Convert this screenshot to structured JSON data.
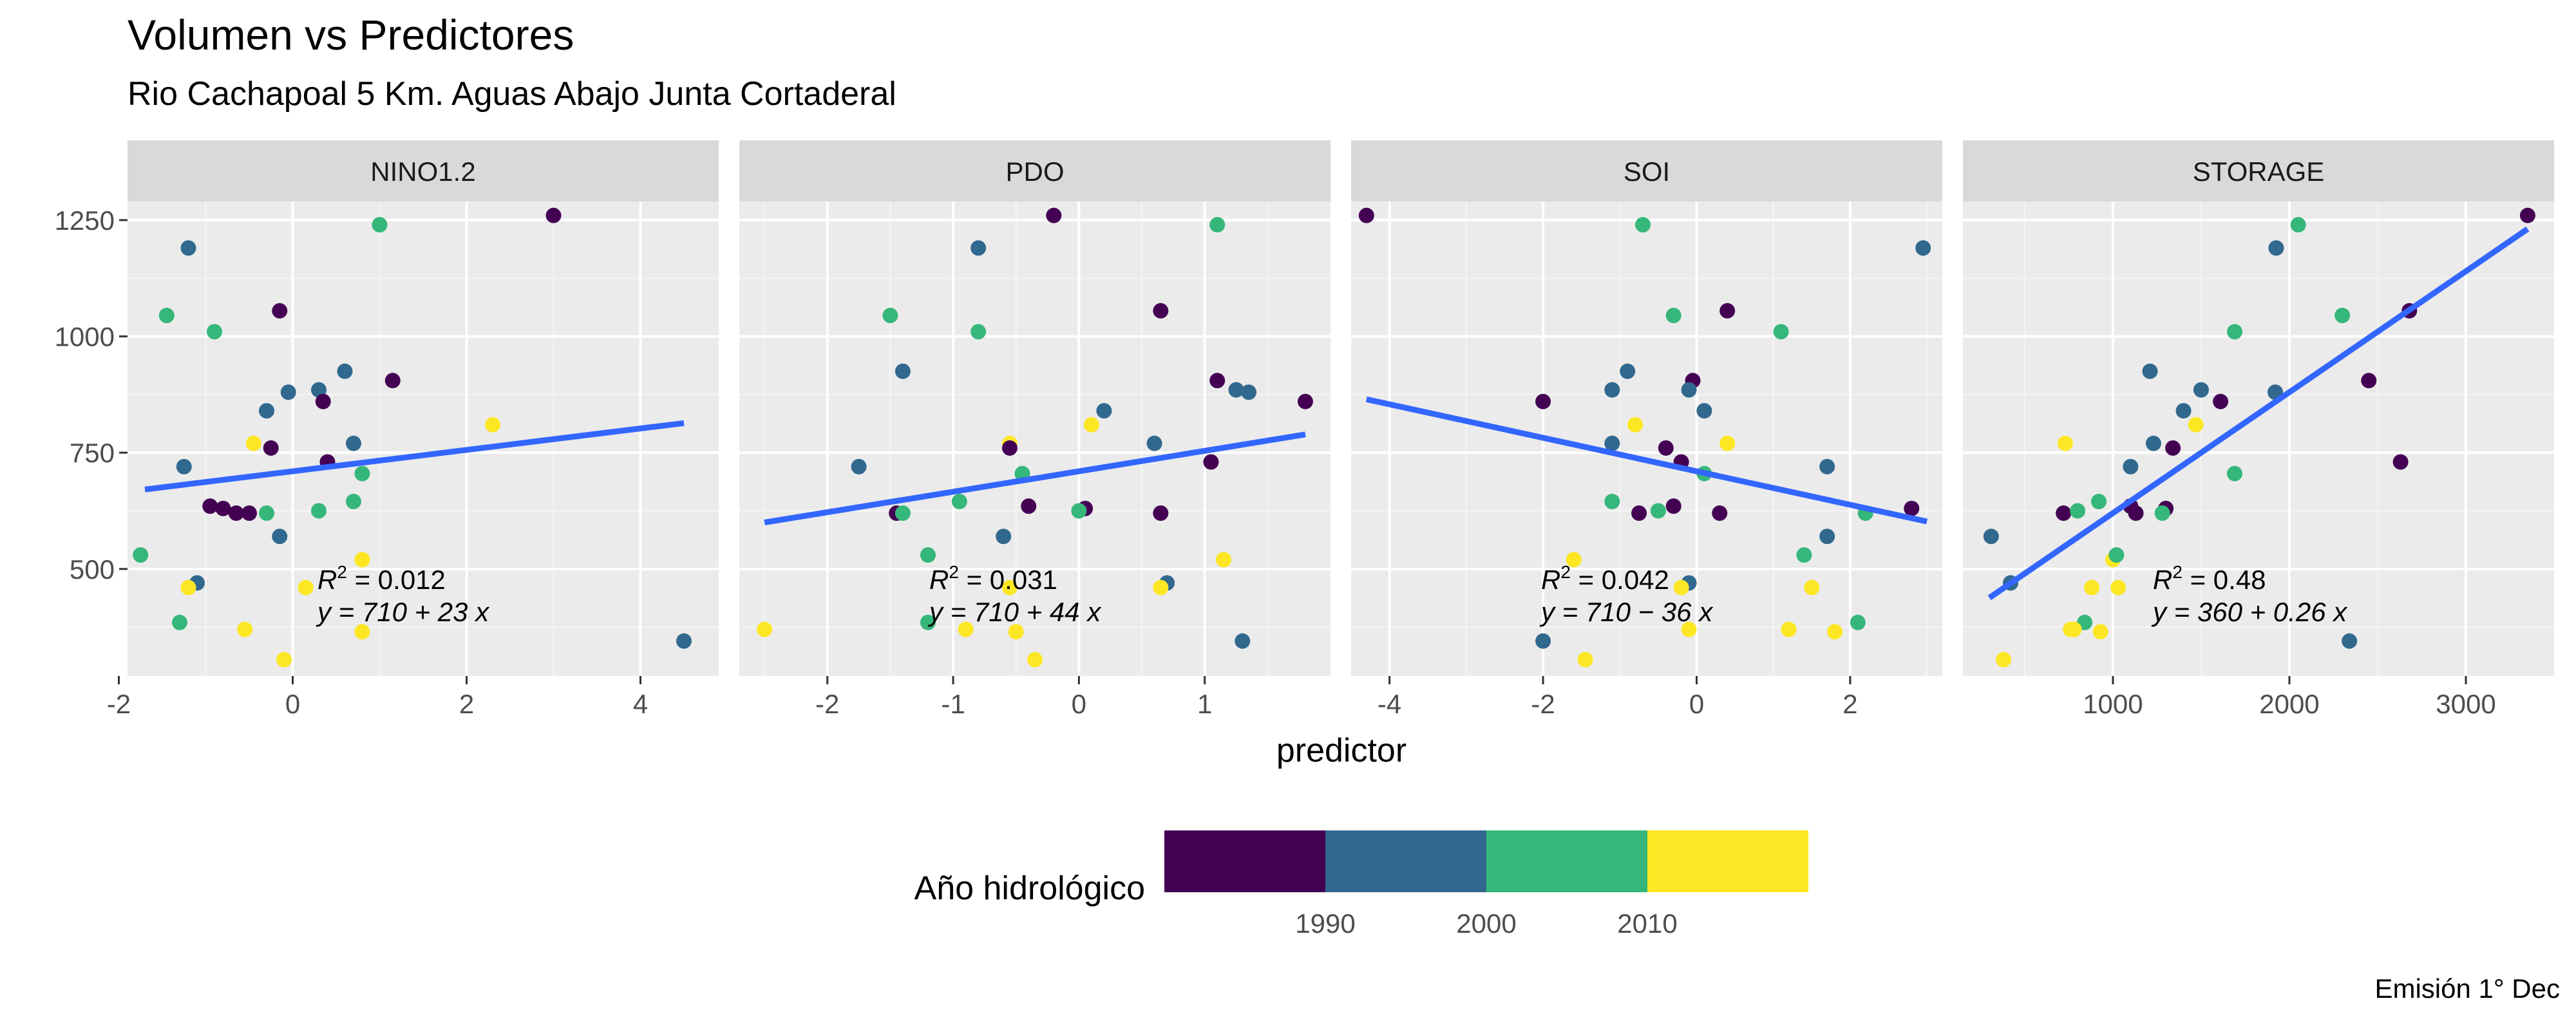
{
  "chart_data": {
    "type": "scatter",
    "title": "Volumen vs Predictores",
    "subtitle": "Rio Cachapoal 5 Km. Aguas Abajo Junta Cortaderal",
    "xlabel": "predictor",
    "ylabel": "",
    "ylim": [
      270,
      1290
    ],
    "yticks": [
      500,
      750,
      1000,
      1250
    ],
    "grid": true,
    "caption": "Emisión 1° Dec",
    "legend": {
      "title": "Año hidrológico",
      "placement": "bottom",
      "breaks": [
        "1990",
        "2000",
        "2010"
      ],
      "bins": [
        {
          "range": "<1990",
          "color": "#440154"
        },
        {
          "range": "1990-2000",
          "color": "#31688E"
        },
        {
          "range": "2000-2010",
          "color": "#35B779"
        },
        {
          "range": ">=2010",
          "color": "#FDE725"
        }
      ]
    },
    "regression_line_color": "#3366FF",
    "panels": [
      {
        "name": "NINO1.2",
        "xlim": [
          -1.9,
          4.9
        ],
        "xticks": [
          -2,
          0,
          2,
          4
        ],
        "xtick_labels": [
          "-2",
          "0",
          "2",
          "4"
        ],
        "fit": {
          "x_range": [
            -1.7,
            4.5
          ],
          "intercept": 710,
          "slope": 23
        },
        "annotation": {
          "r2": "0.012",
          "eq": "y = 710 + 23 x"
        },
        "points": [
          {
            "x": -1.2,
            "y": 1190,
            "era": 1
          },
          {
            "x": 3.0,
            "y": 1260,
            "era": 0
          },
          {
            "x": 1.0,
            "y": 1240,
            "era": 2
          },
          {
            "x": -1.45,
            "y": 1045,
            "era": 2
          },
          {
            "x": -0.9,
            "y": 1010,
            "era": 2
          },
          {
            "x": -0.15,
            "y": 1055,
            "era": 0
          },
          {
            "x": 0.6,
            "y": 925,
            "era": 1
          },
          {
            "x": 1.15,
            "y": 905,
            "era": 0
          },
          {
            "x": -0.3,
            "y": 840,
            "era": 1
          },
          {
            "x": -0.05,
            "y": 880,
            "era": 1
          },
          {
            "x": 0.3,
            "y": 885,
            "era": 1
          },
          {
            "x": 0.35,
            "y": 860,
            "era": 0
          },
          {
            "x": 2.3,
            "y": 810,
            "era": 3
          },
          {
            "x": 0.7,
            "y": 770,
            "era": 1
          },
          {
            "x": -0.45,
            "y": 770,
            "era": 3
          },
          {
            "x": -0.25,
            "y": 760,
            "era": 0
          },
          {
            "x": 0.4,
            "y": 730,
            "era": 0
          },
          {
            "x": -1.25,
            "y": 720,
            "era": 1
          },
          {
            "x": 0.8,
            "y": 705,
            "era": 2
          },
          {
            "x": 0.7,
            "y": 645,
            "era": 2
          },
          {
            "x": -0.95,
            "y": 635,
            "era": 0
          },
          {
            "x": -0.8,
            "y": 630,
            "era": 0
          },
          {
            "x": -0.65,
            "y": 620,
            "era": 0
          },
          {
            "x": -0.5,
            "y": 620,
            "era": 0
          },
          {
            "x": -0.3,
            "y": 620,
            "era": 2
          },
          {
            "x": 0.3,
            "y": 625,
            "era": 2
          },
          {
            "x": -0.15,
            "y": 570,
            "era": 1
          },
          {
            "x": 0.8,
            "y": 520,
            "era": 3
          },
          {
            "x": -1.75,
            "y": 530,
            "era": 2
          },
          {
            "x": -1.1,
            "y": 470,
            "era": 1
          },
          {
            "x": -1.2,
            "y": 460,
            "era": 3
          },
          {
            "x": 0.15,
            "y": 460,
            "era": 3
          },
          {
            "x": -1.3,
            "y": 385,
            "era": 2
          },
          {
            "x": -0.55,
            "y": 370,
            "era": 3
          },
          {
            "x": 0.8,
            "y": 365,
            "era": 3
          },
          {
            "x": -0.1,
            "y": 305,
            "era": 3
          },
          {
            "x": 4.5,
            "y": 345,
            "era": 1
          }
        ]
      },
      {
        "name": "PDO",
        "xlim": [
          -2.7,
          2.0
        ],
        "xticks": [
          -2,
          -1,
          0,
          1
        ],
        "xtick_labels": [
          "-2",
          "-1",
          "0",
          "1"
        ],
        "fit": {
          "x_range": [
            -2.5,
            1.8
          ],
          "intercept": 710,
          "slope": 44
        },
        "annotation": {
          "r2": "0.031",
          "eq": "y = 710 + 44 x"
        },
        "points": [
          {
            "x": -0.8,
            "y": 1190,
            "era": 1
          },
          {
            "x": -0.2,
            "y": 1260,
            "era": 0
          },
          {
            "x": 1.1,
            "y": 1240,
            "era": 2
          },
          {
            "x": -1.5,
            "y": 1045,
            "era": 2
          },
          {
            "x": -0.8,
            "y": 1010,
            "era": 2
          },
          {
            "x": 0.65,
            "y": 1055,
            "era": 0
          },
          {
            "x": -1.4,
            "y": 925,
            "era": 1
          },
          {
            "x": 1.1,
            "y": 905,
            "era": 0
          },
          {
            "x": 1.25,
            "y": 885,
            "era": 1
          },
          {
            "x": 1.35,
            "y": 880,
            "era": 1
          },
          {
            "x": 1.8,
            "y": 860,
            "era": 0
          },
          {
            "x": 0.2,
            "y": 840,
            "era": 1
          },
          {
            "x": 0.1,
            "y": 810,
            "era": 3
          },
          {
            "x": 0.6,
            "y": 770,
            "era": 1
          },
          {
            "x": -0.55,
            "y": 770,
            "era": 3
          },
          {
            "x": -0.55,
            "y": 760,
            "era": 0
          },
          {
            "x": 1.05,
            "y": 730,
            "era": 0
          },
          {
            "x": -1.75,
            "y": 720,
            "era": 1
          },
          {
            "x": -0.45,
            "y": 705,
            "era": 2
          },
          {
            "x": -0.95,
            "y": 645,
            "era": 2
          },
          {
            "x": -0.4,
            "y": 635,
            "era": 0
          },
          {
            "x": 0.05,
            "y": 630,
            "era": 0
          },
          {
            "x": 0.65,
            "y": 620,
            "era": 0
          },
          {
            "x": -1.45,
            "y": 620,
            "era": 0
          },
          {
            "x": -1.4,
            "y": 620,
            "era": 2
          },
          {
            "x": 0.0,
            "y": 625,
            "era": 2
          },
          {
            "x": -0.6,
            "y": 570,
            "era": 1
          },
          {
            "x": 1.15,
            "y": 520,
            "era": 3
          },
          {
            "x": -1.2,
            "y": 530,
            "era": 2
          },
          {
            "x": 0.7,
            "y": 470,
            "era": 1
          },
          {
            "x": 0.65,
            "y": 460,
            "era": 3
          },
          {
            "x": -0.55,
            "y": 460,
            "era": 3
          },
          {
            "x": -1.2,
            "y": 385,
            "era": 2
          },
          {
            "x": -0.9,
            "y": 370,
            "era": 3
          },
          {
            "x": -0.5,
            "y": 365,
            "era": 3
          },
          {
            "x": -0.35,
            "y": 305,
            "era": 3
          },
          {
            "x": 1.3,
            "y": 345,
            "era": 1
          },
          {
            "x": -2.5,
            "y": 370,
            "era": 3
          }
        ]
      },
      {
        "name": "SOI",
        "xlim": [
          -4.5,
          3.2
        ],
        "xticks": [
          -4,
          -2,
          0,
          2
        ],
        "xtick_labels": [
          "-4",
          "-2",
          "0",
          "2"
        ],
        "fit": {
          "x_range": [
            -4.3,
            3.0
          ],
          "intercept": 710,
          "slope": -36
        },
        "annotation": {
          "r2": "0.042",
          "eq": "y = 710 − 36 x"
        },
        "points": [
          {
            "x": 2.95,
            "y": 1190,
            "era": 1
          },
          {
            "x": -4.3,
            "y": 1260,
            "era": 0
          },
          {
            "x": -0.7,
            "y": 1240,
            "era": 2
          },
          {
            "x": -0.3,
            "y": 1045,
            "era": 2
          },
          {
            "x": 1.1,
            "y": 1010,
            "era": 2
          },
          {
            "x": 0.4,
            "y": 1055,
            "era": 0
          },
          {
            "x": -0.9,
            "y": 925,
            "era": 1
          },
          {
            "x": -0.05,
            "y": 905,
            "era": 0
          },
          {
            "x": -1.1,
            "y": 885,
            "era": 1
          },
          {
            "x": -0.1,
            "y": 885,
            "era": 1
          },
          {
            "x": -2.0,
            "y": 860,
            "era": 0
          },
          {
            "x": 0.1,
            "y": 840,
            "era": 1
          },
          {
            "x": -0.8,
            "y": 810,
            "era": 3
          },
          {
            "x": -1.1,
            "y": 770,
            "era": 1
          },
          {
            "x": 0.4,
            "y": 770,
            "era": 3
          },
          {
            "x": -0.4,
            "y": 760,
            "era": 0
          },
          {
            "x": -0.2,
            "y": 730,
            "era": 0
          },
          {
            "x": 1.7,
            "y": 720,
            "era": 1
          },
          {
            "x": 0.1,
            "y": 705,
            "era": 2
          },
          {
            "x": -1.1,
            "y": 645,
            "era": 2
          },
          {
            "x": -0.3,
            "y": 635,
            "era": 0
          },
          {
            "x": 2.8,
            "y": 630,
            "era": 0
          },
          {
            "x": -0.75,
            "y": 620,
            "era": 0
          },
          {
            "x": 0.3,
            "y": 620,
            "era": 0
          },
          {
            "x": -0.5,
            "y": 625,
            "era": 2
          },
          {
            "x": 2.2,
            "y": 620,
            "era": 2
          },
          {
            "x": 1.7,
            "y": 570,
            "era": 1
          },
          {
            "x": -1.6,
            "y": 520,
            "era": 3
          },
          {
            "x": 1.4,
            "y": 530,
            "era": 2
          },
          {
            "x": -0.1,
            "y": 470,
            "era": 1
          },
          {
            "x": 1.5,
            "y": 460,
            "era": 3
          },
          {
            "x": -0.2,
            "y": 460,
            "era": 3
          },
          {
            "x": 2.1,
            "y": 385,
            "era": 2
          },
          {
            "x": 1.2,
            "y": 370,
            "era": 3
          },
          {
            "x": 1.8,
            "y": 365,
            "era": 3
          },
          {
            "x": -0.1,
            "y": 370,
            "era": 3
          },
          {
            "x": -1.45,
            "y": 305,
            "era": 3
          },
          {
            "x": -2.0,
            "y": 345,
            "era": 1
          }
        ]
      },
      {
        "name": "STORAGE",
        "xlim": [
          150,
          3500
        ],
        "xticks": [
          1000,
          2000,
          3000
        ],
        "xtick_labels": [
          "1000",
          "2000",
          "3000"
        ],
        "fit": {
          "x_range": [
            300,
            3350
          ],
          "intercept": 360,
          "slope": 0.26
        },
        "annotation": {
          "r2": "0.48",
          "eq": "y = 360 + 0.26 x"
        },
        "points": [
          {
            "x": 1925,
            "y": 1190,
            "era": 1
          },
          {
            "x": 3350,
            "y": 1260,
            "era": 0
          },
          {
            "x": 2050,
            "y": 1240,
            "era": 2
          },
          {
            "x": 2300,
            "y": 1045,
            "era": 2
          },
          {
            "x": 1690,
            "y": 1010,
            "era": 2
          },
          {
            "x": 2680,
            "y": 1055,
            "era": 0
          },
          {
            "x": 1210,
            "y": 925,
            "era": 1
          },
          {
            "x": 2450,
            "y": 905,
            "era": 0
          },
          {
            "x": 1500,
            "y": 885,
            "era": 1
          },
          {
            "x": 1920,
            "y": 880,
            "era": 1
          },
          {
            "x": 1610,
            "y": 860,
            "era": 0
          },
          {
            "x": 1400,
            "y": 840,
            "era": 1
          },
          {
            "x": 1470,
            "y": 810,
            "era": 3
          },
          {
            "x": 1230,
            "y": 770,
            "era": 1
          },
          {
            "x": 730,
            "y": 770,
            "era": 3
          },
          {
            "x": 1340,
            "y": 760,
            "era": 0
          },
          {
            "x": 2630,
            "y": 730,
            "era": 0
          },
          {
            "x": 1100,
            "y": 720,
            "era": 1
          },
          {
            "x": 1690,
            "y": 705,
            "era": 2
          },
          {
            "x": 920,
            "y": 645,
            "era": 2
          },
          {
            "x": 1100,
            "y": 635,
            "era": 0
          },
          {
            "x": 1300,
            "y": 630,
            "era": 0
          },
          {
            "x": 720,
            "y": 620,
            "era": 0
          },
          {
            "x": 1130,
            "y": 620,
            "era": 0
          },
          {
            "x": 800,
            "y": 625,
            "era": 2
          },
          {
            "x": 1280,
            "y": 620,
            "era": 2
          },
          {
            "x": 310,
            "y": 570,
            "era": 1
          },
          {
            "x": 1000,
            "y": 520,
            "era": 3
          },
          {
            "x": 1020,
            "y": 530,
            "era": 2
          },
          {
            "x": 420,
            "y": 470,
            "era": 1
          },
          {
            "x": 880,
            "y": 460,
            "era": 3
          },
          {
            "x": 1030,
            "y": 460,
            "era": 3
          },
          {
            "x": 840,
            "y": 385,
            "era": 2
          },
          {
            "x": 760,
            "y": 370,
            "era": 3
          },
          {
            "x": 930,
            "y": 365,
            "era": 3
          },
          {
            "x": 780,
            "y": 370,
            "era": 3
          },
          {
            "x": 380,
            "y": 305,
            "era": 3
          },
          {
            "x": 2340,
            "y": 345,
            "era": 1
          }
        ]
      }
    ]
  }
}
